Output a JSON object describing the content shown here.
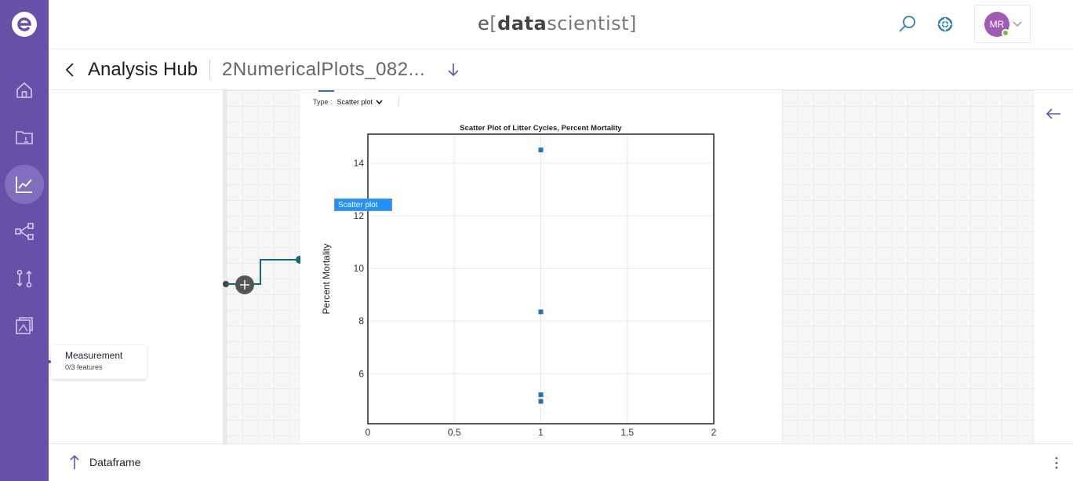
{
  "app": {
    "brand_prefix": "e",
    "brand_bracket_open": "[",
    "brand_data": "data",
    "brand_scientist": "scientist",
    "brand_bracket_close": "]"
  },
  "header": {
    "avatar_initials": "MR"
  },
  "subheader": {
    "title": "Analysis Hub",
    "file_name": "2NumericalPlots_082..."
  },
  "panel": {
    "type_label": "Type :",
    "type_value": "Scatter plot",
    "tooltip": "Scatter plot"
  },
  "node": {
    "title": "Measurement",
    "subtitle": "0/3 features"
  },
  "footer": {
    "label": "Dataframe"
  },
  "chart_data": {
    "type": "scatter",
    "title": "Scatter Plot of Litter Cycles, Percent Mortality",
    "xlabel": "",
    "ylabel": "Percent Mortality",
    "xlim": [
      0,
      2
    ],
    "ylim": [
      4.1,
      15.1
    ],
    "x_ticks": [
      "0",
      "0.5",
      "1",
      "1.5",
      "2"
    ],
    "y_ticks": [
      "6",
      "8",
      "10",
      "12",
      "14"
    ],
    "grid": true,
    "color": "#1f77b4",
    "points": [
      {
        "x": 1,
        "y": 14.5
      },
      {
        "x": 1,
        "y": 8.35
      },
      {
        "x": 1,
        "y": 5.2
      },
      {
        "x": 1,
        "y": 4.95
      }
    ]
  }
}
